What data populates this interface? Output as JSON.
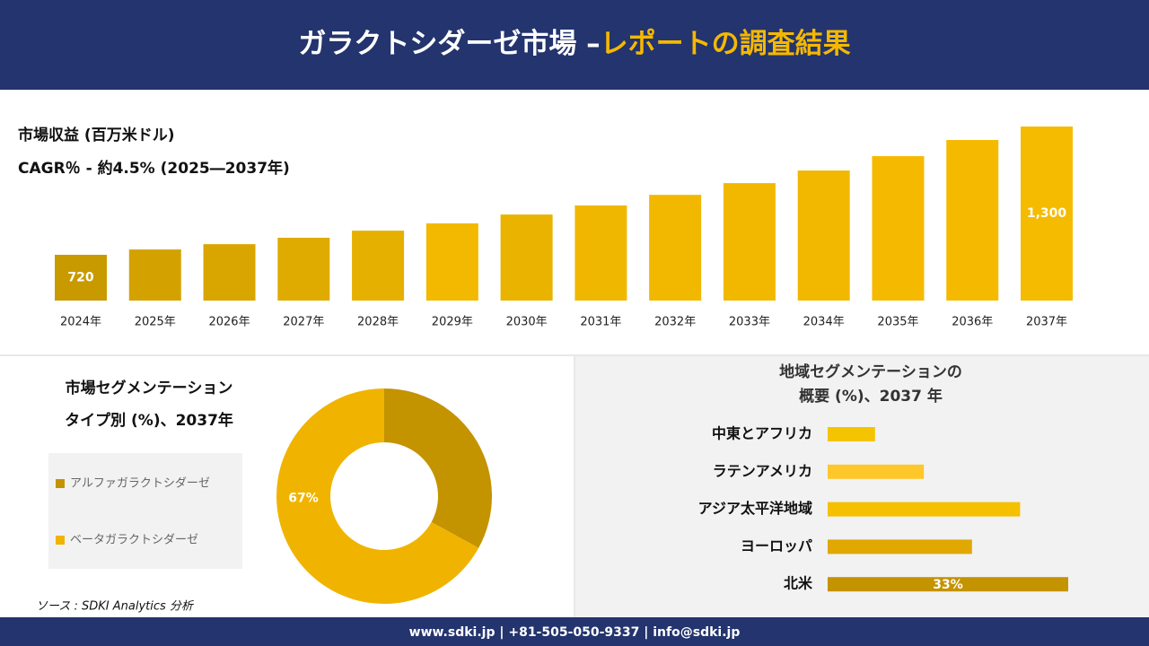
{
  "header": {
    "title_part1": "ガラクトシダーゼ市場 –",
    "title_part2": "レポートの調査結果"
  },
  "chart_data": [
    {
      "type": "bar",
      "subtitle": "市場収益 (百万米ドル)",
      "annotation": "CAGR％ - 約4.5% (2025―2037年)",
      "categories": [
        "2024年",
        "2025年",
        "2026年",
        "2027年",
        "2028年",
        "2029年",
        "2030年",
        "2031年",
        "2032年",
        "2033年",
        "2034年",
        "2035年",
        "2036年",
        "2037年"
      ],
      "values": [
        720,
        744,
        768,
        797,
        829,
        862,
        902,
        943,
        991,
        1044,
        1101,
        1166,
        1239,
        1300
      ],
      "value_labels": [
        "720",
        null,
        null,
        null,
        null,
        null,
        null,
        null,
        null,
        null,
        null,
        null,
        null,
        "1,300"
      ],
      "colors": [
        "#c99a00",
        "#d4a200",
        "#d9a600",
        "#dfab00",
        "#e6b000",
        "#f2b900",
        "#eab300",
        "#f0b700",
        "#f2b800",
        "#f2b800",
        "#f2b800",
        "#f5ba00",
        "#f5ba00",
        "#f5bb00"
      ],
      "ylim": [
        513,
        1300
      ]
    },
    {
      "type": "donut",
      "title": [
        "市場セグメンテーション",
        "タイプ別 (%)、2037年"
      ],
      "categories": [
        "アルファガラクトシダーゼ",
        "ベータガラクトシダーゼ"
      ],
      "values": [
        33,
        67
      ],
      "value_labels": [
        null,
        "67%"
      ],
      "colors": [
        "#c49300",
        "#f0b400"
      ]
    },
    {
      "type": "hbar",
      "title": [
        "地域セグメンテーションの",
        "概要 (%)、2037 年"
      ],
      "categories": [
        "中東とアフリカ",
        "ラテンアメリカ",
        "アジア太平洋地域",
        "ヨーロッパ",
        "北米"
      ],
      "values": [
        6.5,
        13.2,
        26.4,
        19.8,
        33
      ],
      "value_labels": [
        null,
        null,
        null,
        null,
        "33%"
      ],
      "colors": [
        "#f5c400",
        "#ffc72a",
        "#f5c000",
        "#e0a800",
        "#c49300"
      ],
      "xlim": [
        0,
        33
      ]
    }
  ],
  "source": "ソース : SDKI Analytics 分析",
  "footer": "www.sdki.jp | +81-505-050-9337 | info@sdki.jp"
}
